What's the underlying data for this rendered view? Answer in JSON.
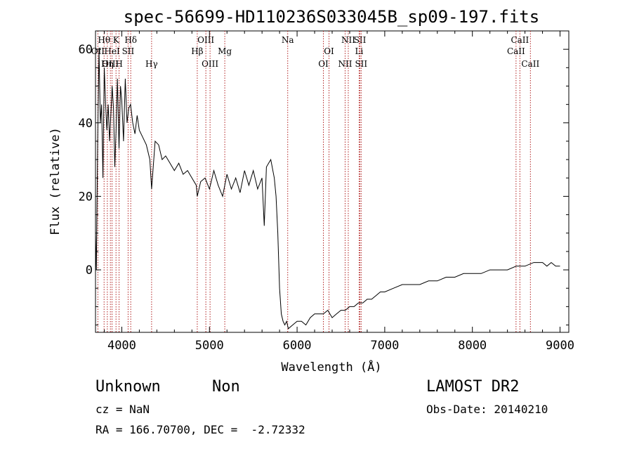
{
  "chart_data": {
    "type": "line",
    "title": "spec-56699-HD110236S033045B_sp09-197.fits",
    "xlabel": "Wavelength (Å)",
    "ylabel": "Flux (relative)",
    "xlim": [
      3700,
      9100
    ],
    "ylim": [
      -17,
      65
    ],
    "x_ticks": [
      4000,
      5000,
      6000,
      7000,
      8000,
      9000
    ],
    "y_ticks": [
      0,
      20,
      40,
      60
    ],
    "grid": false,
    "series": [
      {
        "x": [
          3700,
          3710,
          3725,
          3740,
          3755,
          3770,
          3785,
          3800,
          3815,
          3830,
          3845,
          3860,
          3875,
          3890,
          3905,
          3920,
          3935,
          3950,
          3968,
          3985,
          4000,
          4020,
          4040,
          4060,
          4080,
          4100,
          4125,
          4150,
          4175,
          4200,
          4240,
          4280,
          4320,
          4340,
          4380,
          4420,
          4460,
          4500,
          4550,
          4600,
          4650,
          4700,
          4750,
          4800,
          4850,
          4861,
          4900,
          4950,
          5000,
          5050,
          5100,
          5150,
          5200,
          5250,
          5300,
          5350,
          5400,
          5450,
          5500,
          5550,
          5600,
          5625,
          5650,
          5700,
          5740,
          5760,
          5780,
          5800,
          5820,
          5840,
          5860,
          5880,
          5900,
          5950,
          6000,
          6050,
          6100,
          6150,
          6200,
          6250,
          6300,
          6350,
          6400,
          6450,
          6500,
          6550,
          6600,
          6650,
          6700,
          6750,
          6800,
          6850,
          6900,
          6950,
          7000,
          7100,
          7200,
          7300,
          7400,
          7500,
          7600,
          7700,
          7800,
          7900,
          8000,
          8100,
          8200,
          8300,
          8400,
          8500,
          8600,
          8700,
          8750,
          8800,
          8850,
          8900,
          8950,
          9000
        ],
        "y": [
          10,
          0,
          35,
          60,
          40,
          45,
          25,
          55,
          45,
          38,
          45,
          35,
          42,
          50,
          44,
          28,
          38,
          52,
          33,
          50,
          46,
          35,
          52,
          40,
          44,
          45,
          40,
          37,
          42,
          38,
          36,
          34,
          30,
          22,
          35,
          34,
          30,
          31,
          29,
          27,
          29,
          26,
          27,
          25,
          23,
          20,
          24,
          25,
          22,
          27,
          23,
          20,
          26,
          22,
          25,
          21,
          27,
          23,
          27,
          22,
          25,
          12,
          28,
          30,
          25,
          20,
          10,
          -5,
          -12,
          -14,
          -15,
          -14,
          -16,
          -15,
          -14,
          -14,
          -15,
          -13,
          -12,
          -12,
          -12,
          -11,
          -13,
          -12,
          -11,
          -11,
          -10,
          -10,
          -9,
          -9,
          -8,
          -8,
          -7,
          -6,
          -6,
          -5,
          -4,
          -4,
          -4,
          -3,
          -3,
          -2,
          -2,
          -1,
          -1,
          -1,
          0,
          0,
          0,
          1,
          1,
          2,
          2,
          2,
          1,
          2,
          1,
          1
        ]
      }
    ],
    "line_markers": [
      {
        "label": "Hθ",
        "x": 3798,
        "row": 0
      },
      {
        "label": "K",
        "x": 3934,
        "row": 0
      },
      {
        "label": "Hδ",
        "x": 4102,
        "row": 0
      },
      {
        "label": "OIII",
        "x": 4959,
        "row": 0
      },
      {
        "label": "Na",
        "x": 5893,
        "row": 0
      },
      {
        "label": "NII",
        "x": 6584,
        "row": 0
      },
      {
        "label": "SII",
        "x": 6717,
        "row": 0
      },
      {
        "label": "CaII",
        "x": 8542,
        "row": 0
      },
      {
        "label": "OII",
        "x": 3727,
        "row": 1
      },
      {
        "label": "HeI",
        "x": 3889,
        "row": 1
      },
      {
        "label": "SII",
        "x": 4072,
        "row": 1
      },
      {
        "label": "Hβ",
        "x": 4861,
        "row": 1
      },
      {
        "label": "Mg",
        "x": 5175,
        "row": 1
      },
      {
        "label": "OI",
        "x": 6364,
        "row": 1
      },
      {
        "label": "Li",
        "x": 6708,
        "row": 1
      },
      {
        "label": "CaII",
        "x": 8498,
        "row": 1
      },
      {
        "label": "OIII",
        "x": 3870,
        "row": 2
      },
      {
        "label": "Hη",
        "x": 3835,
        "row": 2
      },
      {
        "label": "H",
        "x": 3969,
        "row": 2
      },
      {
        "label": "Hγ",
        "x": 4340,
        "row": 2
      },
      {
        "label": "OIII",
        "x": 5007,
        "row": 2
      },
      {
        "label": "OI",
        "x": 6300,
        "row": 2
      },
      {
        "label": "NII",
        "x": 6548,
        "row": 2
      },
      {
        "label": "SII",
        "x": 6731,
        "row": 2
      },
      {
        "label": "CaII",
        "x": 8662,
        "row": 2
      }
    ]
  },
  "info": {
    "class_label": "Unknown",
    "subclass_label": "Non",
    "survey": "LAMOST DR2",
    "cz": "cz = NaN",
    "obs_date": "Obs-Date: 20140210",
    "radec": "RA = 166.70700, DEC =  -2.72332"
  }
}
